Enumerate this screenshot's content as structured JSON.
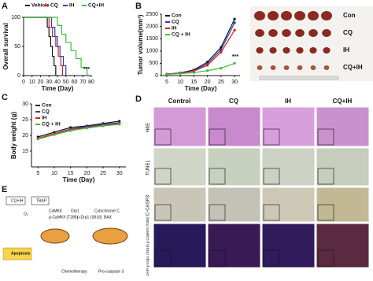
{
  "chart_data": [
    {
      "type": "line",
      "panel_label": "A",
      "step": true,
      "x_label": "Time (Day)",
      "y_label": "Overall survival",
      "annotation": "***",
      "legend": "top",
      "xlim": [
        0,
        80
      ],
      "xticks": [
        0,
        10,
        20,
        30,
        40,
        50,
        60,
        70,
        80
      ],
      "ylim": [
        0,
        100
      ],
      "yticks": [
        0,
        50,
        100
      ],
      "series": [
        {
          "name": "Vehicle",
          "color": "#111111",
          "x": [
            0,
            28,
            30,
            32,
            34,
            36,
            38
          ],
          "values": [
            100,
            83,
            67,
            50,
            33,
            17,
            0
          ]
        },
        {
          "name": "CQ",
          "color": "#e41a1c",
          "x": [
            0,
            30,
            34,
            38,
            41,
            44,
            46
          ],
          "values": [
            100,
            83,
            67,
            50,
            33,
            17,
            0
          ]
        },
        {
          "name": "IH",
          "color": "#1f3fbf",
          "x": [
            0,
            33,
            37,
            40,
            43,
            47,
            50
          ],
          "values": [
            100,
            83,
            67,
            50,
            33,
            17,
            0
          ]
        },
        {
          "name": "CQ+IH",
          "color": "#3cbf3c",
          "x": [
            0,
            40,
            45,
            50,
            56,
            62,
            68,
            75
          ],
          "values": [
            100,
            86,
            71,
            57,
            43,
            29,
            14,
            0
          ]
        }
      ]
    },
    {
      "type": "line",
      "panel_label": "B",
      "step": false,
      "x_label": "Time (Day)",
      "y_label": "Tumor volume(mm³)",
      "annotation": "***",
      "legend": "upper left",
      "x": [
        5,
        10,
        15,
        20,
        25,
        30
      ],
      "xlim": [
        3,
        32
      ],
      "xticks": [
        5,
        10,
        15,
        20,
        25,
        30
      ],
      "ylim": [
        0,
        2500
      ],
      "yticks": [
        0,
        500,
        1000,
        1500,
        2000,
        2500
      ],
      "series": [
        {
          "name": "Con",
          "color": "#111111",
          "values": [
            60,
            110,
            230,
            550,
            1150,
            2300
          ]
        },
        {
          "name": "CQ",
          "color": "#1f3fbf",
          "values": [
            55,
            100,
            200,
            480,
            1050,
            2150
          ]
        },
        {
          "name": "IH",
          "color": "#e41a1c",
          "values": [
            55,
            95,
            180,
            420,
            950,
            1850
          ]
        },
        {
          "name": "CQ + IH",
          "color": "#3cbf3c",
          "values": [
            50,
            80,
            120,
            200,
            300,
            500
          ]
        }
      ]
    },
    {
      "type": "line",
      "panel_label": "C",
      "step": false,
      "x_label": "Time (Day)",
      "y_label": "Body weight (g)",
      "legend": "upper left",
      "x": [
        5,
        10,
        15,
        20,
        25,
        30
      ],
      "xlim": [
        3,
        32
      ],
      "xticks": [
        5,
        10,
        15,
        20,
        25,
        30
      ],
      "ylim": [
        10,
        30
      ],
      "yticks": [
        15,
        20,
        25,
        30
      ],
      "series": [
        {
          "name": "Con",
          "color": "#111111",
          "values": [
            19.5,
            21,
            22.5,
            23,
            23.8,
            24.5
          ]
        },
        {
          "name": "CQ",
          "color": "#1f3fbf",
          "values": [
            19,
            20.5,
            22,
            22.8,
            23.5,
            24
          ]
        },
        {
          "name": "IH",
          "color": "#e41a1c",
          "values": [
            19,
            20.5,
            21.8,
            22.5,
            23.2,
            23.8
          ]
        },
        {
          "name": "CQ + IH",
          "color": "#3cbf3c",
          "values": [
            18.8,
            20.2,
            21.5,
            22.3,
            23,
            23.5
          ]
        }
      ]
    }
  ],
  "tumor_photo": {
    "labels": [
      "Con",
      "CQ",
      "IH",
      "CQ+IH"
    ]
  },
  "panel_d": {
    "panel_label": "D",
    "columns": [
      "Control",
      "CQ",
      "IH",
      "CQ+IH"
    ],
    "rows": [
      "H&E",
      "TUNEL",
      "C-CASP3",
      "DAPI p-Drp1 (S616) p-CaMKII (T286)"
    ]
  },
  "panel_e": {
    "panel_label": "E",
    "labels": [
      "CQ+IH",
      "TBAP",
      "O₂",
      "CaMKII",
      "Drp1",
      "Cytochrome C",
      "p-CaMKII (T286)",
      "p-Drp1 (S616)",
      "BAX",
      "Apoptosis",
      "Chemotherapy",
      "Pro-caspase 3"
    ]
  }
}
